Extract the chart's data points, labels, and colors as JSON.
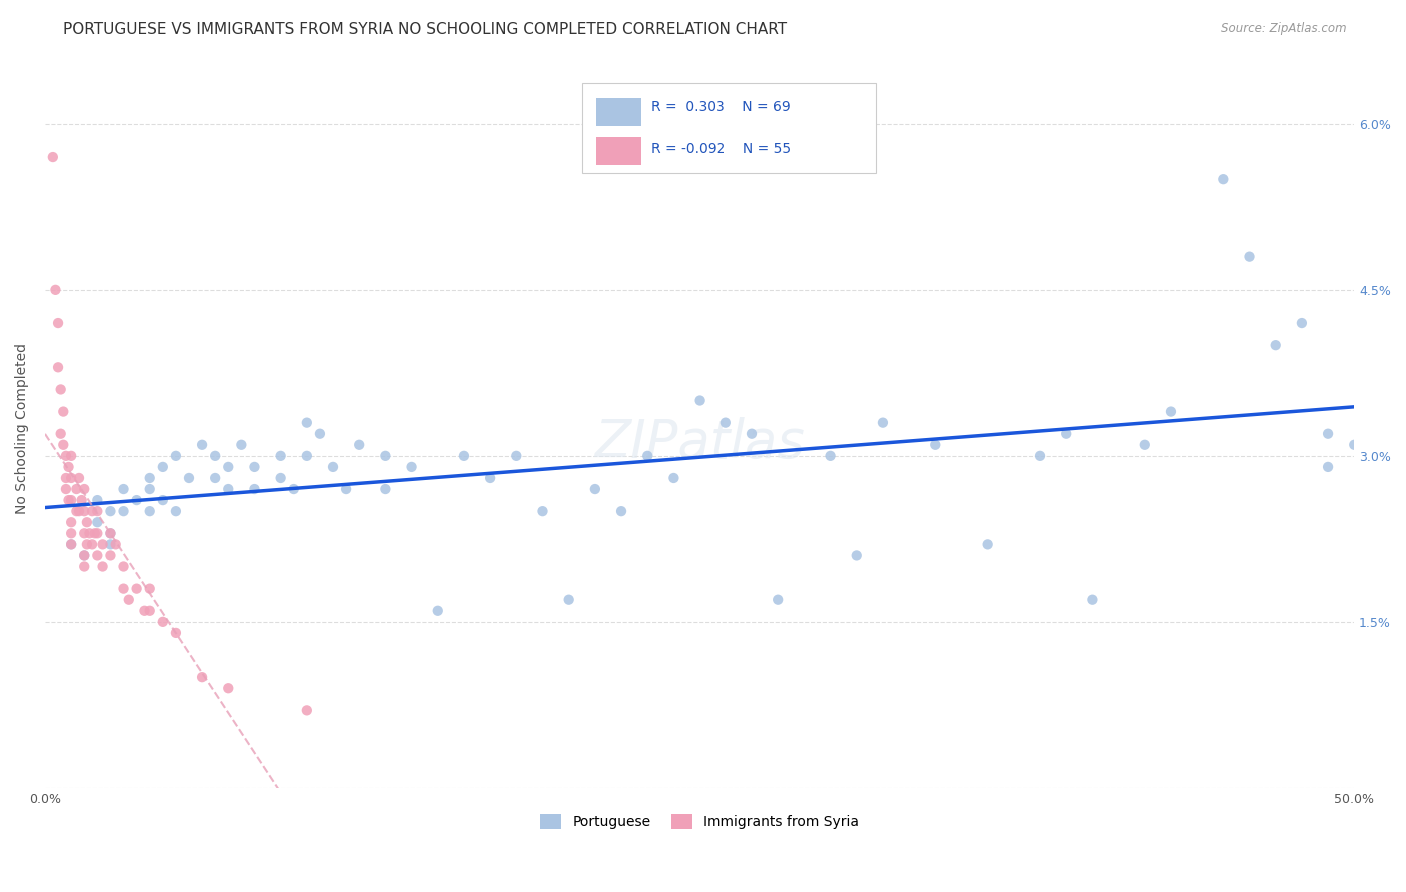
{
  "title": "PORTUGUESE VS IMMIGRANTS FROM SYRIA NO SCHOOLING COMPLETED CORRELATION CHART",
  "source": "Source: ZipAtlas.com",
  "ylabel": "No Schooling Completed",
  "xlim": [
    0.0,
    0.5
  ],
  "ylim": [
    0.0,
    0.065
  ],
  "color_portuguese": "#aac4e2",
  "color_syria": "#f0a0b8",
  "color_line_portuguese": "#1a56db",
  "color_line_syria": "#e8a0b8",
  "legend_r1": "R =  0.303",
  "legend_n1": "N = 69",
  "legend_r2": "R = -0.092",
  "legend_n2": "N = 55",
  "legend_label1": "Portuguese",
  "legend_label2": "Immigrants from Syria",
  "portuguese_x": [
    0.01,
    0.015,
    0.02,
    0.02,
    0.025,
    0.025,
    0.025,
    0.03,
    0.03,
    0.035,
    0.04,
    0.04,
    0.04,
    0.045,
    0.045,
    0.05,
    0.05,
    0.055,
    0.06,
    0.065,
    0.065,
    0.07,
    0.07,
    0.075,
    0.08,
    0.08,
    0.09,
    0.09,
    0.095,
    0.1,
    0.1,
    0.105,
    0.11,
    0.115,
    0.12,
    0.13,
    0.13,
    0.14,
    0.15,
    0.16,
    0.17,
    0.18,
    0.19,
    0.2,
    0.21,
    0.22,
    0.23,
    0.24,
    0.25,
    0.26,
    0.27,
    0.28,
    0.3,
    0.31,
    0.32,
    0.34,
    0.36,
    0.38,
    0.39,
    0.4,
    0.42,
    0.43,
    0.45,
    0.46,
    0.47,
    0.48,
    0.49,
    0.49,
    0.5
  ],
  "portuguese_y": [
    0.022,
    0.021,
    0.024,
    0.026,
    0.023,
    0.025,
    0.022,
    0.027,
    0.025,
    0.026,
    0.028,
    0.025,
    0.027,
    0.029,
    0.026,
    0.03,
    0.025,
    0.028,
    0.031,
    0.03,
    0.028,
    0.029,
    0.027,
    0.031,
    0.029,
    0.027,
    0.03,
    0.028,
    0.027,
    0.033,
    0.03,
    0.032,
    0.029,
    0.027,
    0.031,
    0.03,
    0.027,
    0.029,
    0.016,
    0.03,
    0.028,
    0.03,
    0.025,
    0.017,
    0.027,
    0.025,
    0.03,
    0.028,
    0.035,
    0.033,
    0.032,
    0.017,
    0.03,
    0.021,
    0.033,
    0.031,
    0.022,
    0.03,
    0.032,
    0.017,
    0.031,
    0.034,
    0.055,
    0.048,
    0.04,
    0.042,
    0.032,
    0.029,
    0.031
  ],
  "syria_x": [
    0.003,
    0.004,
    0.005,
    0.005,
    0.006,
    0.006,
    0.007,
    0.007,
    0.008,
    0.008,
    0.008,
    0.009,
    0.009,
    0.01,
    0.01,
    0.01,
    0.01,
    0.01,
    0.01,
    0.012,
    0.012,
    0.013,
    0.013,
    0.014,
    0.015,
    0.015,
    0.015,
    0.015,
    0.015,
    0.016,
    0.016,
    0.017,
    0.018,
    0.018,
    0.019,
    0.02,
    0.02,
    0.02,
    0.022,
    0.022,
    0.025,
    0.025,
    0.027,
    0.03,
    0.03,
    0.032,
    0.035,
    0.038,
    0.04,
    0.04,
    0.045,
    0.05,
    0.06,
    0.07,
    0.1
  ],
  "syria_y": [
    0.057,
    0.045,
    0.042,
    0.038,
    0.036,
    0.032,
    0.034,
    0.031,
    0.03,
    0.028,
    0.027,
    0.029,
    0.026,
    0.03,
    0.028,
    0.026,
    0.024,
    0.023,
    0.022,
    0.027,
    0.025,
    0.028,
    0.025,
    0.026,
    0.027,
    0.025,
    0.023,
    0.021,
    0.02,
    0.024,
    0.022,
    0.023,
    0.025,
    0.022,
    0.023,
    0.025,
    0.023,
    0.021,
    0.022,
    0.02,
    0.023,
    0.021,
    0.022,
    0.02,
    0.018,
    0.017,
    0.018,
    0.016,
    0.018,
    0.016,
    0.015,
    0.014,
    0.01,
    0.009,
    0.007
  ],
  "background_color": "#ffffff",
  "grid_color": "#dddddd",
  "title_fontsize": 11,
  "axis_fontsize": 10,
  "tick_fontsize": 9,
  "marker_size": 55
}
